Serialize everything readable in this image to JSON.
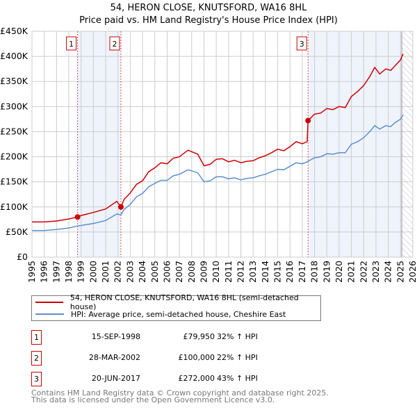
{
  "chart_data": {
    "type": "line",
    "title": "54, HERON CLOSE, KNUTSFORD, WA16 8HL",
    "subtitle": "Price paid vs. HM Land Registry's House Price Index (HPI)",
    "xlim": [
      1995,
      2026
    ],
    "ylim": [
      0,
      450000
    ],
    "x_ticks": [
      "1995",
      "1996",
      "1997",
      "1998",
      "1999",
      "2000",
      "2001",
      "2002",
      "2003",
      "2004",
      "2005",
      "2006",
      "2007",
      "2008",
      "2009",
      "2010",
      "2011",
      "2012",
      "2013",
      "2014",
      "2015",
      "2016",
      "2017",
      "2018",
      "2019",
      "2020",
      "2021",
      "2022",
      "2023",
      "2024",
      "2025",
      "2026"
    ],
    "y_ticks": [
      {
        "v": 0,
        "label": "£0"
      },
      {
        "v": 50000,
        "label": "£50K"
      },
      {
        "v": 100000,
        "label": "£100K"
      },
      {
        "v": 150000,
        "label": "£150K"
      },
      {
        "v": 200000,
        "label": "£200K"
      },
      {
        "v": 250000,
        "label": "£250K"
      },
      {
        "v": 300000,
        "label": "£300K"
      },
      {
        "v": 350000,
        "label": "£350K"
      },
      {
        "v": 400000,
        "label": "£400K"
      },
      {
        "v": 450000,
        "label": "£450K"
      }
    ],
    "grid": true,
    "forecast_start": 2025.1,
    "colors": {
      "property": "#cc0000",
      "hpi": "#5b8fd0",
      "shade": "#eef3fc"
    },
    "series": [
      {
        "name": "property",
        "x": [
          1995,
          1996,
          1997,
          1998,
          1998.71,
          1999,
          2000,
          2001,
          2001.9,
          2002.24,
          2002.5,
          2003,
          2003.5,
          2004,
          2004.5,
          2005,
          2005.5,
          2006,
          2006.5,
          2007,
          2007.7,
          2008,
          2008.5,
          2009,
          2009.5,
          2010,
          2010.5,
          2011,
          2011.5,
          2012,
          2012.5,
          2013,
          2013.5,
          2014,
          2014.5,
          2015,
          2015.5,
          2016,
          2016.5,
          2017,
          2017.4,
          2017.47,
          2018,
          2018.5,
          2019,
          2019.5,
          2020,
          2020.5,
          2021,
          2021.5,
          2022,
          2022.5,
          2022.9,
          2023.3,
          2023.8,
          2024.2,
          2024.5,
          2025,
          2025.2
        ],
        "y": [
          70000,
          70000,
          72000,
          76000,
          79950,
          83000,
          89000,
          96000,
          111000,
          100000,
          115000,
          128000,
          145000,
          152000,
          170000,
          178000,
          188000,
          186000,
          197000,
          200000,
          213000,
          210000,
          205000,
          182000,
          185000,
          195000,
          196000,
          190000,
          193000,
          188000,
          191000,
          192000,
          198000,
          202000,
          208000,
          215000,
          212000,
          220000,
          230000,
          226000,
          230000,
          272000,
          285000,
          287000,
          296000,
          294000,
          300000,
          298000,
          320000,
          330000,
          342000,
          360000,
          378000,
          365000,
          375000,
          372000,
          380000,
          393000,
          405000
        ]
      },
      {
        "name": "hpi",
        "x": [
          1995,
          1996,
          1997,
          1998,
          1998.71,
          1999,
          2000,
          2001,
          2001.9,
          2002.24,
          2002.5,
          2003,
          2003.5,
          2004,
          2004.5,
          2005,
          2005.5,
          2006,
          2006.5,
          2007,
          2007.7,
          2008,
          2008.5,
          2009,
          2009.5,
          2010,
          2010.5,
          2011,
          2011.5,
          2012,
          2012.5,
          2013,
          2013.5,
          2014,
          2014.5,
          2015,
          2015.5,
          2016,
          2016.5,
          2017,
          2017.4,
          2017.47,
          2018,
          2018.5,
          2019,
          2019.5,
          2020,
          2020.5,
          2021,
          2021.5,
          2022,
          2022.5,
          2022.9,
          2023.3,
          2023.8,
          2024.2,
          2024.5,
          2025,
          2025.2
        ],
        "y": [
          53000,
          53000,
          55000,
          58000,
          62000,
          63000,
          67000,
          73000,
          86000,
          84000,
          95000,
          105000,
          120000,
          127000,
          140000,
          147000,
          153000,
          153000,
          162000,
          165000,
          174000,
          172000,
          168000,
          150000,
          152000,
          160000,
          160000,
          156000,
          158000,
          154000,
          157000,
          158000,
          162000,
          165000,
          170000,
          175000,
          174000,
          181000,
          188000,
          186000,
          190000,
          191000,
          198000,
          200000,
          206000,
          205000,
          208000,
          208000,
          225000,
          230000,
          238000,
          250000,
          262000,
          255000,
          262000,
          260000,
          267000,
          275000,
          283000
        ]
      }
    ],
    "sales": [
      {
        "id": "1",
        "x": 1998.71,
        "y": 79950,
        "date": "15-SEP-1998",
        "price": "£79,950",
        "hpi": "32% ↑ HPI"
      },
      {
        "id": "2",
        "x": 2002.24,
        "y": 100000,
        "date": "28-MAR-2002",
        "price": "£100,000",
        "hpi": "22% ↑ HPI"
      },
      {
        "id": "3",
        "x": 2017.47,
        "y": 272000,
        "date": "20-JUN-2017",
        "price": "£272,000",
        "hpi": "43% ↑ HPI"
      }
    ],
    "shaded_ranges": [
      [
        1998.71,
        2002.24
      ],
      [
        2017.47,
        2025.1
      ]
    ]
  },
  "legend": {
    "property": "54, HERON CLOSE, KNUTSFORD, WA16 8HL (semi-detached house)",
    "hpi": "HPI: Average price, semi-detached house, Cheshire East"
  },
  "footer": {
    "line1": "Contains HM Land Registry data © Crown copyright and database right 2025.",
    "line2": "This data is licensed under the Open Government Licence v3.0."
  }
}
